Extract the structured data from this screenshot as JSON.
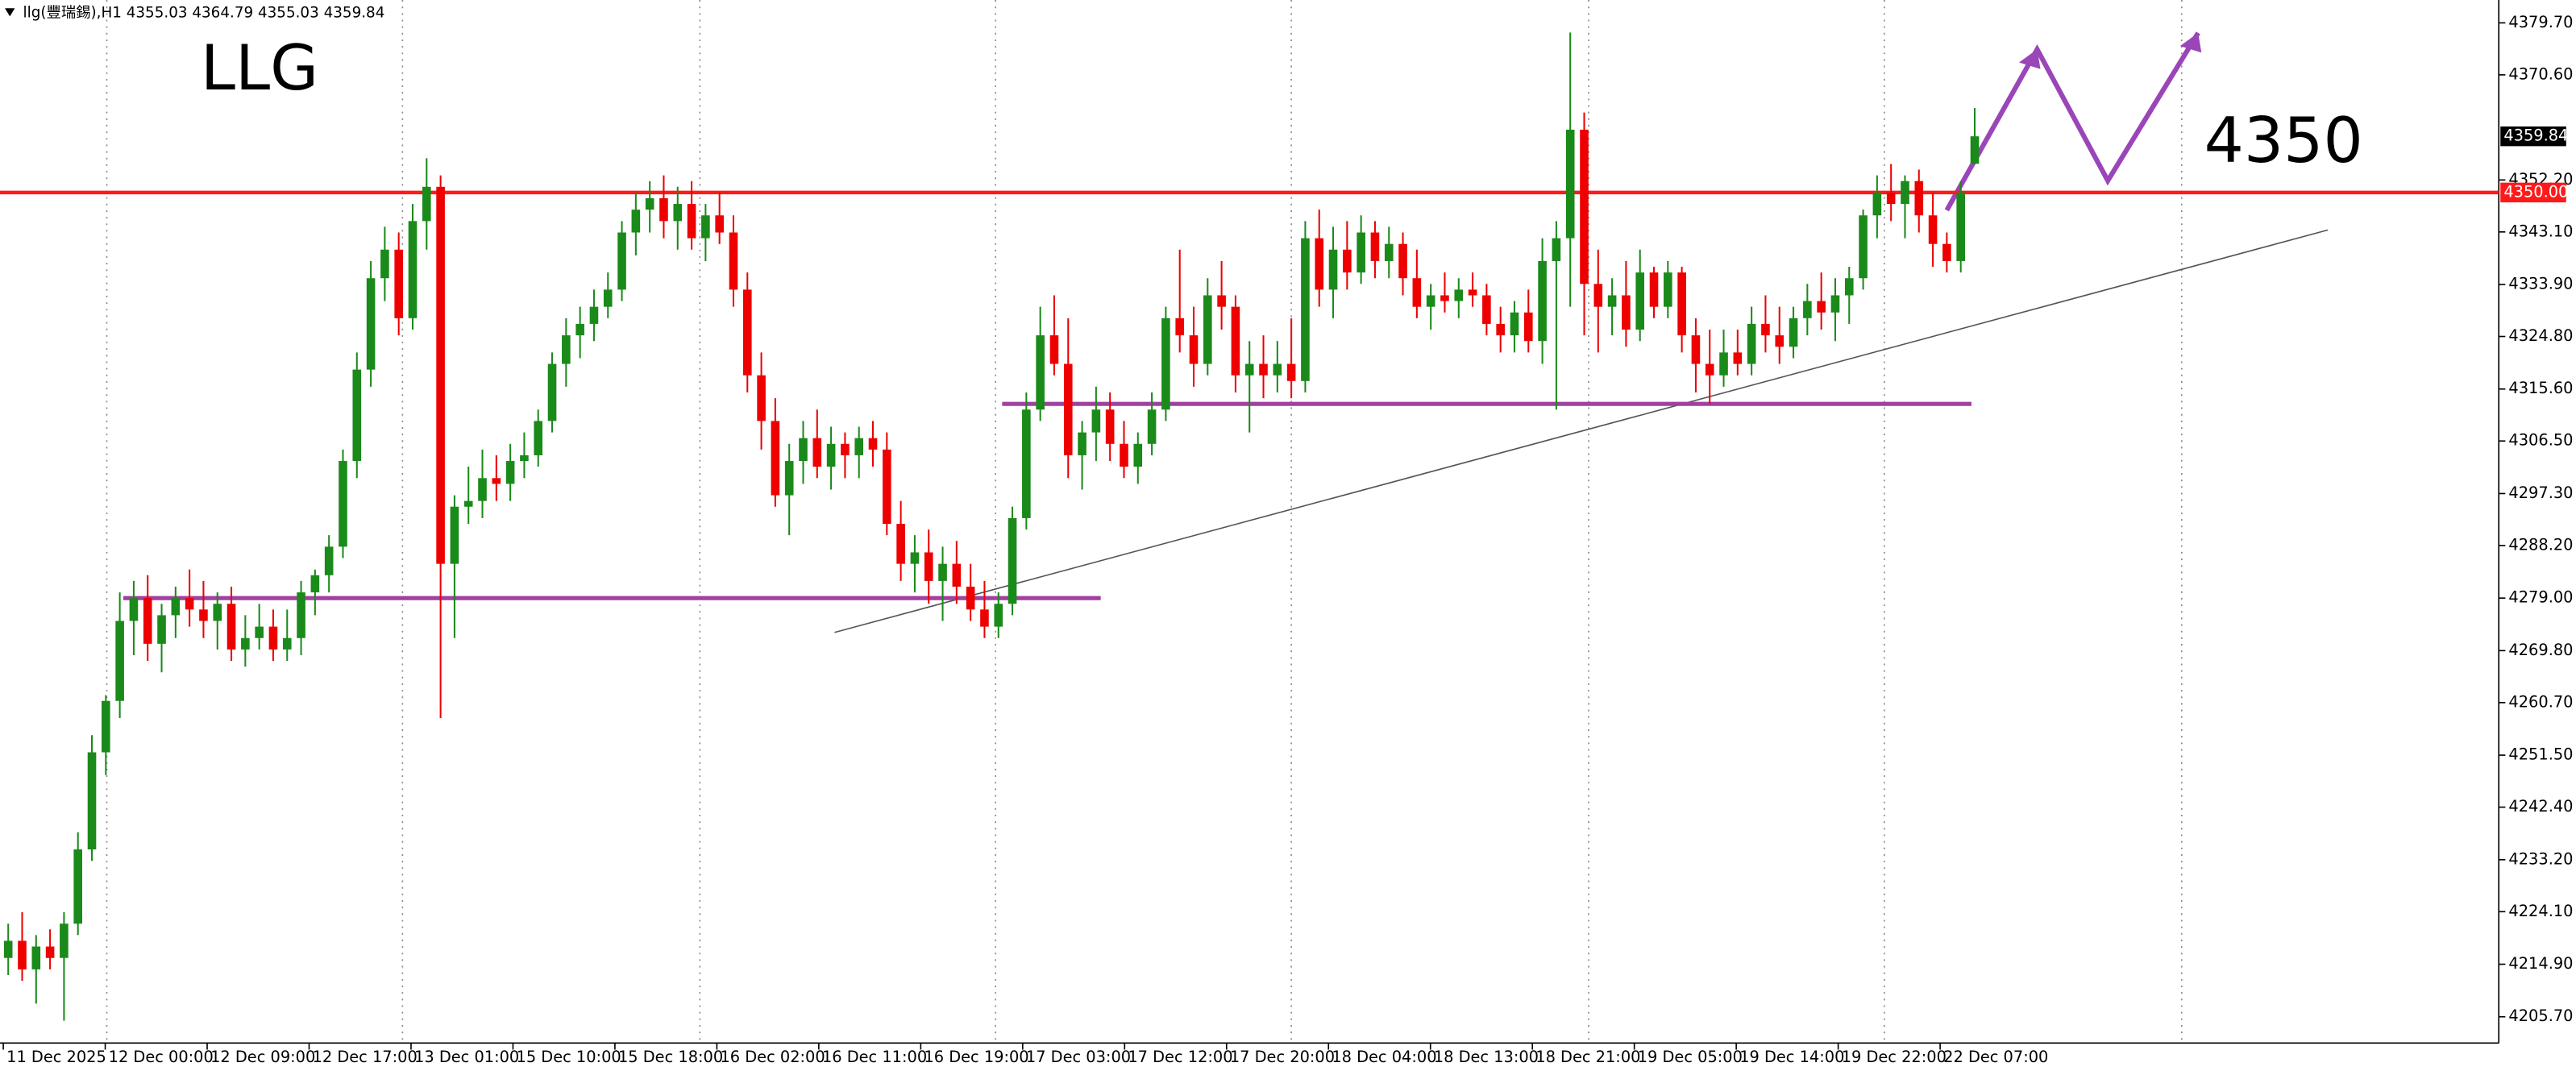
{
  "chart_data": {
    "type": "candlestick",
    "header": "llg(豐瑞錫),H1  4355.03 4364.79 4355.03 4359.84",
    "title": "LLG",
    "annotation": "4350",
    "last_price_label": "4359.84",
    "up_color": "#1a8a1a",
    "down_color": "#ee0000",
    "ylim": [
      4201.1,
      4383.7
    ],
    "yticks": [
      {
        "value": 4379.7,
        "label": "4379.70"
      },
      {
        "value": 4370.6,
        "label": "4370.60"
      },
      {
        "value": 4352.2,
        "label": "4352.20"
      },
      {
        "value": 4343.1,
        "label": "4343.10"
      },
      {
        "value": 4333.9,
        "label": "4333.90"
      },
      {
        "value": 4324.8,
        "label": "4324.80"
      },
      {
        "value": 4315.6,
        "label": "4315.60"
      },
      {
        "value": 4306.5,
        "label": "4306.50"
      },
      {
        "value": 4297.3,
        "label": "4297.30"
      },
      {
        "value": 4288.2,
        "label": "4288.20"
      },
      {
        "value": 4279,
        "label": "4279.00"
      },
      {
        "value": 4269.8,
        "label": "4269.80"
      },
      {
        "value": 4260.7,
        "label": "4260.70"
      },
      {
        "value": 4251.5,
        "label": "4251.50"
      },
      {
        "value": 4242.4,
        "label": "4242.40"
      },
      {
        "value": 4233.2,
        "label": "4233.20"
      },
      {
        "value": 4224.1,
        "label": "4224.10"
      },
      {
        "value": 4214.9,
        "label": "4214.90"
      },
      {
        "value": 4205.7,
        "label": "4205.70"
      }
    ],
    "x_labels": [
      "11 Dec 2025",
      "12 Dec 00:00",
      "12 Dec 09:00",
      "12 Dec 17:00",
      "13 Dec 01:00",
      "15 Dec 10:00",
      "15 Dec 18:00",
      "16 Dec 02:00",
      "16 Dec 11:00",
      "16 Dec 19:00",
      "17 Dec 03:00",
      "17 Dec 12:00",
      "17 Dec 20:00",
      "18 Dec 04:00",
      "18 Dec 13:00",
      "18 Dec 21:00",
      "19 Dec 05:00",
      "19 Dec 14:00",
      "19 Dec 22:00",
      "22 Dec 07:00"
    ],
    "levels": [
      {
        "value": 4350,
        "label": "4350.00",
        "color": "#ff1a1a"
      },
      {
        "value": 4279,
        "color": "#a040a0"
      },
      {
        "value": 4313,
        "color": "#a040a0"
      }
    ],
    "ohlc": [
      [
        4216,
        4222,
        4213,
        4219
      ],
      [
        4219,
        4224,
        4212,
        4214
      ],
      [
        4214,
        4220,
        4208,
        4218
      ],
      [
        4218,
        4221,
        4214,
        4216
      ],
      [
        4216,
        4224,
        4205,
        4222
      ],
      [
        4222,
        4238,
        4220,
        4235
      ],
      [
        4235,
        4255,
        4233,
        4252
      ],
      [
        4252,
        4262,
        4248,
        4261
      ],
      [
        4261,
        4280,
        4258,
        4275
      ],
      [
        4275,
        4282,
        4269,
        4279
      ],
      [
        4279,
        4283,
        4268,
        4271
      ],
      [
        4271,
        4278,
        4266,
        4276
      ],
      [
        4276,
        4281,
        4272,
        4279
      ],
      [
        4279,
        4284,
        4274,
        4277
      ],
      [
        4277,
        4282,
        4272,
        4275
      ],
      [
        4275,
        4280,
        4270,
        4278
      ],
      [
        4278,
        4281,
        4268,
        4270
      ],
      [
        4270,
        4276,
        4267,
        4272
      ],
      [
        4272,
        4278,
        4270,
        4274
      ],
      [
        4274,
        4277,
        4268,
        4270
      ],
      [
        4270,
        4277,
        4268,
        4272
      ],
      [
        4272,
        4282,
        4269,
        4280
      ],
      [
        4280,
        4284,
        4276,
        4283
      ],
      [
        4283,
        4290,
        4280,
        4288
      ],
      [
        4288,
        4305,
        4286,
        4303
      ],
      [
        4303,
        4322,
        4300,
        4319
      ],
      [
        4319,
        4338,
        4316,
        4335
      ],
      [
        4335,
        4344,
        4331,
        4340
      ],
      [
        4340,
        4343,
        4325,
        4328
      ],
      [
        4328,
        4348,
        4326,
        4345
      ],
      [
        4345,
        4356,
        4340,
        4351
      ],
      [
        4351,
        4353,
        4258,
        4285
      ],
      [
        4285,
        4297,
        4272,
        4295
      ],
      [
        4295,
        4302,
        4292,
        4296
      ],
      [
        4296,
        4305,
        4293,
        4300
      ],
      [
        4300,
        4304,
        4296,
        4299
      ],
      [
        4299,
        4306,
        4296,
        4303
      ],
      [
        4303,
        4308,
        4300,
        4304
      ],
      [
        4304,
        4312,
        4302,
        4310
      ],
      [
        4310,
        4322,
        4308,
        4320
      ],
      [
        4320,
        4328,
        4316,
        4325
      ],
      [
        4325,
        4330,
        4321,
        4327
      ],
      [
        4327,
        4333,
        4324,
        4330
      ],
      [
        4330,
        4336,
        4328,
        4333
      ],
      [
        4333,
        4345,
        4331,
        4343
      ],
      [
        4343,
        4350,
        4339,
        4347
      ],
      [
        4347,
        4352,
        4343,
        4349
      ],
      [
        4349,
        4353,
        4342,
        4345
      ],
      [
        4345,
        4351,
        4340,
        4348
      ],
      [
        4348,
        4352,
        4340,
        4342
      ],
      [
        4342,
        4348,
        4338,
        4346
      ],
      [
        4346,
        4350,
        4341,
        4343
      ],
      [
        4343,
        4346,
        4330,
        4333
      ],
      [
        4333,
        4336,
        4315,
        4318
      ],
      [
        4318,
        4322,
        4305,
        4310
      ],
      [
        4310,
        4314,
        4295,
        4297
      ],
      [
        4297,
        4306,
        4290,
        4303
      ],
      [
        4303,
        4310,
        4299,
        4307
      ],
      [
        4307,
        4312,
        4300,
        4302
      ],
      [
        4302,
        4309,
        4298,
        4306
      ],
      [
        4306,
        4308,
        4300,
        4304
      ],
      [
        4304,
        4309,
        4300,
        4307
      ],
      [
        4307,
        4310,
        4302,
        4305
      ],
      [
        4305,
        4308,
        4290,
        4292
      ],
      [
        4292,
        4296,
        4282,
        4285
      ],
      [
        4285,
        4290,
        4280,
        4287
      ],
      [
        4287,
        4291,
        4278,
        4282
      ],
      [
        4282,
        4288,
        4275,
        4285
      ],
      [
        4285,
        4289,
        4278,
        4281
      ],
      [
        4281,
        4285,
        4275,
        4277
      ],
      [
        4277,
        4282,
        4272,
        4274
      ],
      [
        4274,
        4280,
        4272,
        4278
      ],
      [
        4278,
        4295,
        4276,
        4293
      ],
      [
        4293,
        4315,
        4291,
        4312
      ],
      [
        4312,
        4330,
        4310,
        4325
      ],
      [
        4325,
        4332,
        4318,
        4320
      ],
      [
        4320,
        4328,
        4300,
        4304
      ],
      [
        4304,
        4310,
        4298,
        4308
      ],
      [
        4308,
        4316,
        4303,
        4312
      ],
      [
        4312,
        4315,
        4303,
        4306
      ],
      [
        4306,
        4310,
        4300,
        4302
      ],
      [
        4302,
        4308,
        4299,
        4306
      ],
      [
        4306,
        4315,
        4304,
        4312
      ],
      [
        4312,
        4330,
        4310,
        4328
      ],
      [
        4328,
        4340,
        4322,
        4325
      ],
      [
        4325,
        4330,
        4316,
        4320
      ],
      [
        4320,
        4335,
        4318,
        4332
      ],
      [
        4332,
        4338,
        4326,
        4330
      ],
      [
        4330,
        4332,
        4315,
        4318
      ],
      [
        4318,
        4324,
        4308,
        4320
      ],
      [
        4320,
        4325,
        4314,
        4318
      ],
      [
        4318,
        4324,
        4315,
        4320
      ],
      [
        4320,
        4328,
        4314,
        4317
      ],
      [
        4317,
        4345,
        4315,
        4342
      ],
      [
        4342,
        4347,
        4330,
        4333
      ],
      [
        4333,
        4344,
        4328,
        4340
      ],
      [
        4340,
        4345,
        4333,
        4336
      ],
      [
        4336,
        4346,
        4334,
        4343
      ],
      [
        4343,
        4345,
        4335,
        4338
      ],
      [
        4338,
        4344,
        4335,
        4341
      ],
      [
        4341,
        4343,
        4332,
        4335
      ],
      [
        4335,
        4340,
        4328,
        4330
      ],
      [
        4330,
        4334,
        4326,
        4332
      ],
      [
        4332,
        4336,
        4329,
        4331
      ],
      [
        4331,
        4335,
        4328,
        4333
      ],
      [
        4333,
        4336,
        4330,
        4332
      ],
      [
        4332,
        4334,
        4325,
        4327
      ],
      [
        4327,
        4330,
        4322,
        4325
      ],
      [
        4325,
        4331,
        4322,
        4329
      ],
      [
        4329,
        4333,
        4322,
        4324
      ],
      [
        4324,
        4342,
        4320,
        4338
      ],
      [
        4338,
        4345,
        4312,
        4342
      ],
      [
        4342,
        4378,
        4330,
        4361
      ],
      [
        4361,
        4364,
        4325,
        4334
      ],
      [
        4334,
        4340,
        4322,
        4330
      ],
      [
        4330,
        4335,
        4325,
        4332
      ],
      [
        4332,
        4338,
        4323,
        4326
      ],
      [
        4326,
        4340,
        4324,
        4336
      ],
      [
        4336,
        4337,
        4328,
        4330
      ],
      [
        4330,
        4338,
        4328,
        4336
      ],
      [
        4336,
        4337,
        4322,
        4325
      ],
      [
        4325,
        4328,
        4315,
        4320
      ],
      [
        4320,
        4326,
        4313,
        4318
      ],
      [
        4318,
        4326,
        4316,
        4322
      ],
      [
        4322,
        4326,
        4318,
        4320
      ],
      [
        4320,
        4330,
        4318,
        4327
      ],
      [
        4327,
        4332,
        4322,
        4325
      ],
      [
        4325,
        4330,
        4320,
        4323
      ],
      [
        4323,
        4330,
        4321,
        4328
      ],
      [
        4328,
        4334,
        4325,
        4331
      ],
      [
        4331,
        4336,
        4326,
        4329
      ],
      [
        4329,
        4335,
        4324,
        4332
      ],
      [
        4332,
        4337,
        4327,
        4335
      ],
      [
        4335,
        4347,
        4333,
        4346
      ],
      [
        4346,
        4353,
        4342,
        4350
      ],
      [
        4350,
        4355,
        4345,
        4348
      ],
      [
        4348,
        4353,
        4342,
        4352
      ],
      [
        4352,
        4354,
        4343,
        4346
      ],
      [
        4346,
        4350,
        4337,
        4341
      ],
      [
        4341,
        4343,
        4336,
        4338
      ],
      [
        4338,
        4352,
        4336,
        4350
      ],
      [
        4355.03,
        4364.79,
        4355.03,
        4359.84
      ]
    ]
  }
}
